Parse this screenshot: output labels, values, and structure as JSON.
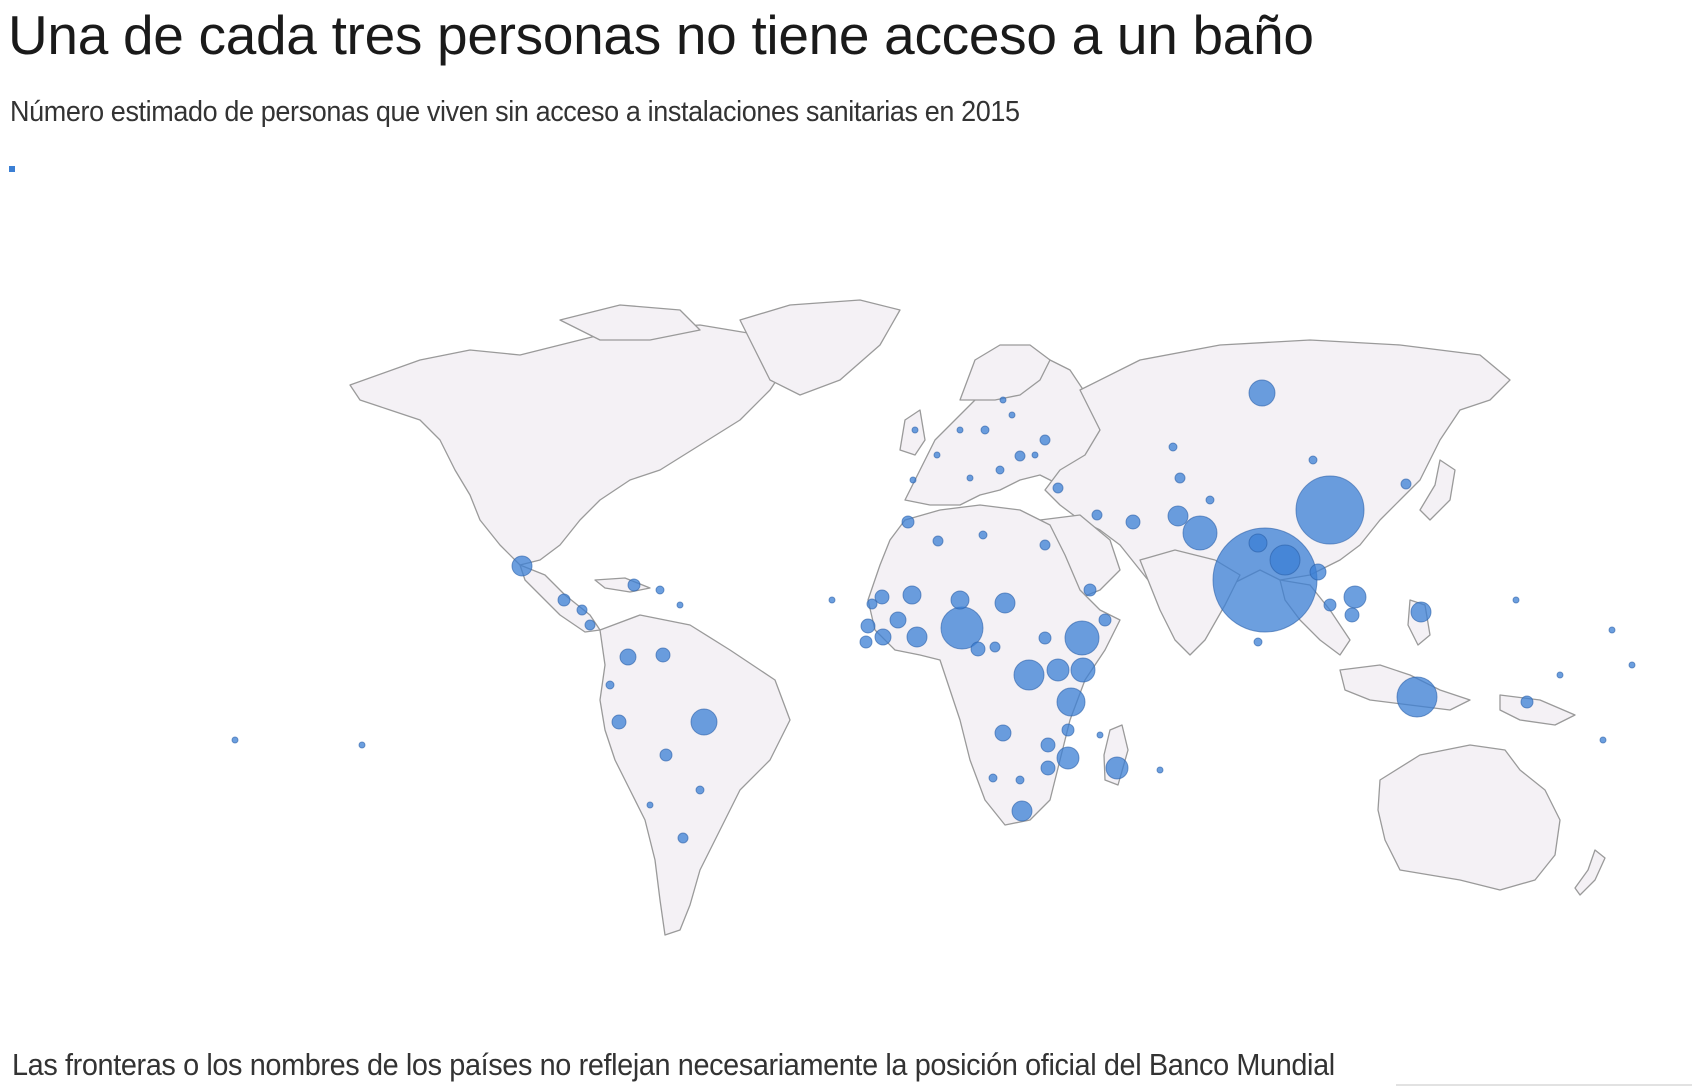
{
  "title": "Una de cada tres personas no tiene acceso a un baño",
  "subtitle": "Número estimado de personas que viven sin acceso a instalaciones sanitarias en 2015",
  "footnote": "Las fronteras o los nombres de los países no reflejan necesariamente la posición oficial del Banco Mundial",
  "colors": {
    "bubble": "#3b7fd4",
    "land": "#f4f1f5",
    "border": "#9a9a9a"
  }
}
